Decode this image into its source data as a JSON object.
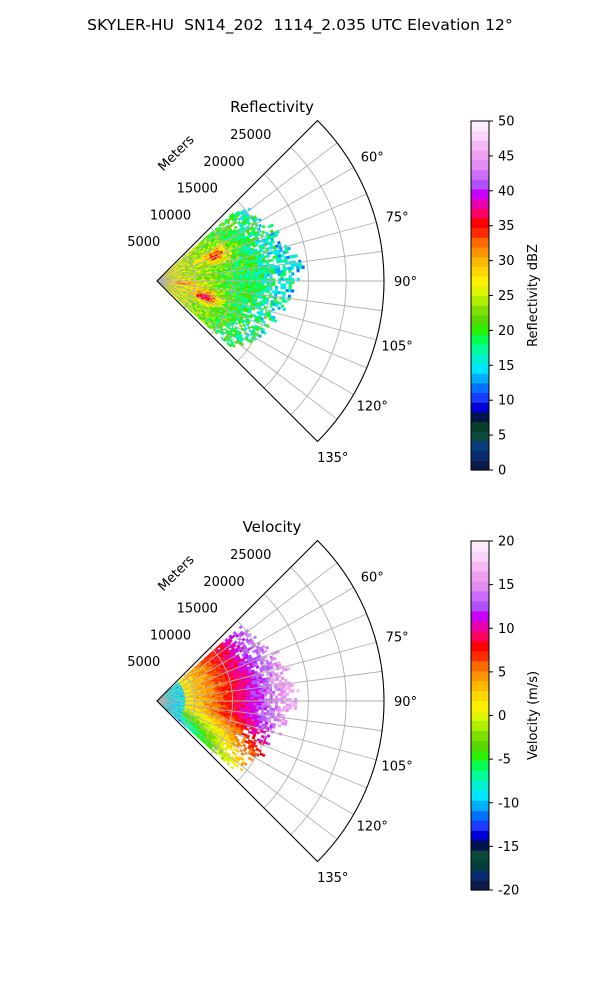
{
  "figure": {
    "title": "SKYLER-HU  SN14_202  1114_2.035 UTC Elevation 12°"
  },
  "chart_data": [
    {
      "type": "heatmap",
      "subtype": "polar-sector (PPI)",
      "title": "Reflectivity",
      "radial_label": "Meters",
      "radial_ticks": [
        "5000",
        "10000",
        "15000",
        "20000",
        "25000"
      ],
      "radial_values": [
        5000,
        10000,
        15000,
        20000,
        25000
      ],
      "rmax": 30000,
      "theta_ticks": [
        "60°",
        "75°",
        "90°",
        "105°",
        "120°",
        "135°"
      ],
      "theta_values": [
        60,
        75,
        90,
        105,
        120,
        135
      ],
      "theta_range": [
        45,
        135
      ],
      "grid": true,
      "colorbar": {
        "label": "Reflectivity dBZ",
        "min": 0,
        "max": 50,
        "ticks": [
          "0",
          "5",
          "10",
          "15",
          "20",
          "25",
          "30",
          "35",
          "40",
          "45",
          "50"
        ],
        "tick_values": [
          0,
          5,
          10,
          15,
          20,
          25,
          30,
          35,
          40,
          45,
          50
        ],
        "colors": [
          "#0b1a4a",
          "#0a2a6e",
          "#063c7a",
          "#0b4a3a",
          "#093c2a",
          "#00134a",
          "#0000d6",
          "#1a3cff",
          "#0070ff",
          "#00b0ff",
          "#00e5ff",
          "#00f0d0",
          "#00ff9a",
          "#00ff50",
          "#2cf000",
          "#56d800",
          "#7fe000",
          "#b0ee00",
          "#e0f500",
          "#fff000",
          "#ffd700",
          "#ffb800",
          "#ff9400",
          "#ff6a00",
          "#ff2a00",
          "#ff0000",
          "#ff0060",
          "#e800b0",
          "#c800ff",
          "#b050ff",
          "#cf6cff",
          "#e08cf0",
          "#ee9ff0",
          "#f5b8f5",
          "#fad4fa",
          "#fdebfd"
        ]
      }
    },
    {
      "type": "heatmap",
      "subtype": "polar-sector (PPI)",
      "title": "Velocity",
      "radial_label": "Meters",
      "radial_ticks": [
        "5000",
        "10000",
        "15000",
        "20000",
        "25000"
      ],
      "radial_values": [
        5000,
        10000,
        15000,
        20000,
        25000
      ],
      "rmax": 30000,
      "theta_ticks": [
        "60°",
        "75°",
        "90°",
        "105°",
        "120°",
        "135°"
      ],
      "theta_values": [
        60,
        75,
        90,
        105,
        120,
        135
      ],
      "theta_range": [
        45,
        135
      ],
      "grid": true,
      "colorbar": {
        "label": "Velocity (m/s)",
        "min": -20,
        "max": 20,
        "ticks": [
          "-20",
          "-15",
          "-10",
          "-5",
          "0",
          "5",
          "10",
          "15",
          "20"
        ],
        "tick_values": [
          -20,
          -15,
          -10,
          -5,
          0,
          5,
          10,
          15,
          20
        ],
        "colors": [
          "#0b1a4a",
          "#0a2a6e",
          "#063c3a",
          "#0b4a3a",
          "#00134a",
          "#0000d6",
          "#1a3cff",
          "#0070ff",
          "#00b0ff",
          "#00e5ff",
          "#00f0d0",
          "#00ff9a",
          "#00ff50",
          "#2cf000",
          "#56d800",
          "#7fe000",
          "#b0ee00",
          "#e0f500",
          "#fff000",
          "#ffd700",
          "#ffb800",
          "#ff9400",
          "#ff6a00",
          "#ff2a00",
          "#ff0000",
          "#ff0060",
          "#e800b0",
          "#c800ff",
          "#b050ff",
          "#cf6cff",
          "#e08cf0",
          "#ee9ff0",
          "#f5b8f5",
          "#fad4fa",
          "#fdebfd"
        ]
      }
    }
  ]
}
